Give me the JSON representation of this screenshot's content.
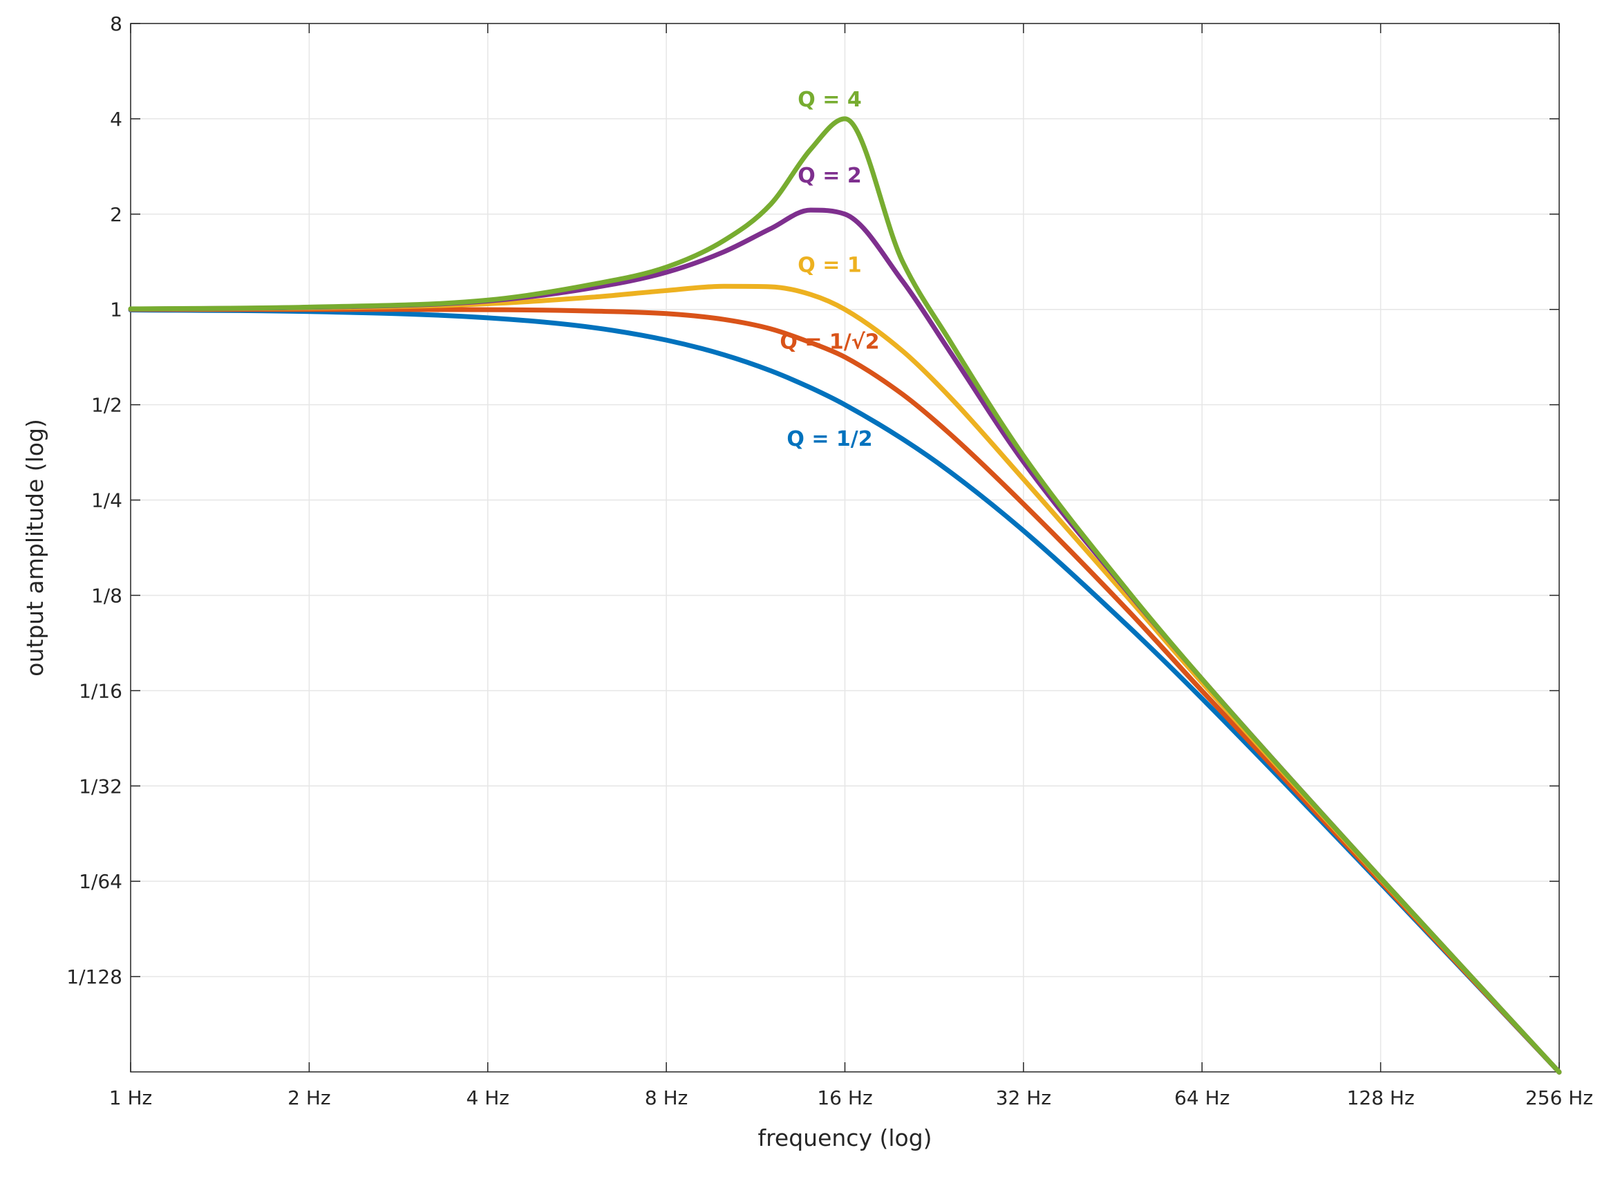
{
  "chart_data": {
    "type": "line",
    "title": "",
    "xlabel": "frequency (log)",
    "ylabel": "output amplitude (log)",
    "x_scale": "log2",
    "y_scale": "log2",
    "xlim": [
      1,
      256
    ],
    "ylim": [
      0.00390625,
      8
    ],
    "grid": true,
    "x_ticks": [
      {
        "value": 1,
        "label": "1 Hz"
      },
      {
        "value": 2,
        "label": "2 Hz"
      },
      {
        "value": 4,
        "label": "4 Hz"
      },
      {
        "value": 8,
        "label": "8 Hz"
      },
      {
        "value": 16,
        "label": "16 Hz"
      },
      {
        "value": 32,
        "label": "32 Hz"
      },
      {
        "value": 64,
        "label": "64 Hz"
      },
      {
        "value": 128,
        "label": "128 Hz"
      },
      {
        "value": 256,
        "label": "256 Hz"
      }
    ],
    "y_ticks": [
      {
        "value": 8,
        "label": "8"
      },
      {
        "value": 4,
        "label": "4"
      },
      {
        "value": 2,
        "label": "2"
      },
      {
        "value": 1,
        "label": "1"
      },
      {
        "value": 0.5,
        "label": "1/2"
      },
      {
        "value": 0.25,
        "label": "1/4"
      },
      {
        "value": 0.125,
        "label": "1/8"
      },
      {
        "value": 0.0625,
        "label": "1/16"
      },
      {
        "value": 0.03125,
        "label": "1/32"
      },
      {
        "value": 0.015625,
        "label": "1/64"
      },
      {
        "value": 0.0078125,
        "label": "1/128"
      }
    ],
    "x": [
      1,
      2,
      4,
      6,
      8,
      10,
      12,
      14,
      16,
      20,
      24,
      32,
      48,
      64,
      128,
      256
    ],
    "series": [
      {
        "name": "Q = 1/2",
        "color": "#0072BD",
        "label_at": {
          "x": 16,
          "y": 0.39
        },
        "values": [
          0.996,
          0.985,
          0.941,
          0.877,
          0.8,
          0.719,
          0.64,
          0.566,
          0.5,
          0.39,
          0.308,
          0.2,
          0.1,
          0.059,
          0.0154,
          0.0039
        ]
      },
      {
        "name": "Q = 1/√2",
        "color": "#D95319",
        "label_at": {
          "x": 16,
          "y": 0.79
        },
        "values": [
          1.0,
          1.0,
          0.998,
          0.988,
          0.97,
          0.93,
          0.868,
          0.786,
          0.707,
          0.54,
          0.406,
          0.243,
          0.112,
          0.0624,
          0.0156,
          0.0039
        ]
      },
      {
        "name": "Q = 1",
        "color": "#EDB120",
        "label_at": {
          "x": 16,
          "y": 1.38
        },
        "values": [
          1.002,
          1.01,
          1.042,
          1.093,
          1.147,
          1.183,
          1.179,
          1.115,
          1.0,
          0.74,
          0.531,
          0.291,
          0.123,
          0.0663,
          0.0159,
          0.0039
        ]
      },
      {
        "name": "Q = 2",
        "color": "#7E2F8E",
        "label_at": {
          "x": 16,
          "y": 2.65
        },
        "values": [
          1.003,
          1.015,
          1.063,
          1.17,
          1.31,
          1.52,
          1.8,
          2.06,
          2.0,
          1.23,
          0.74,
          0.33,
          0.128,
          0.068,
          0.016,
          0.0039
        ]
      },
      {
        "name": "Q = 4",
        "color": "#77AC30",
        "label_at": {
          "x": 16,
          "y": 4.6
        },
        "values": [
          1.004,
          1.017,
          1.07,
          1.2,
          1.36,
          1.65,
          2.15,
          3.2,
          4.0,
          1.42,
          0.8,
          0.345,
          0.129,
          0.068,
          0.016,
          0.0039
        ]
      }
    ]
  }
}
